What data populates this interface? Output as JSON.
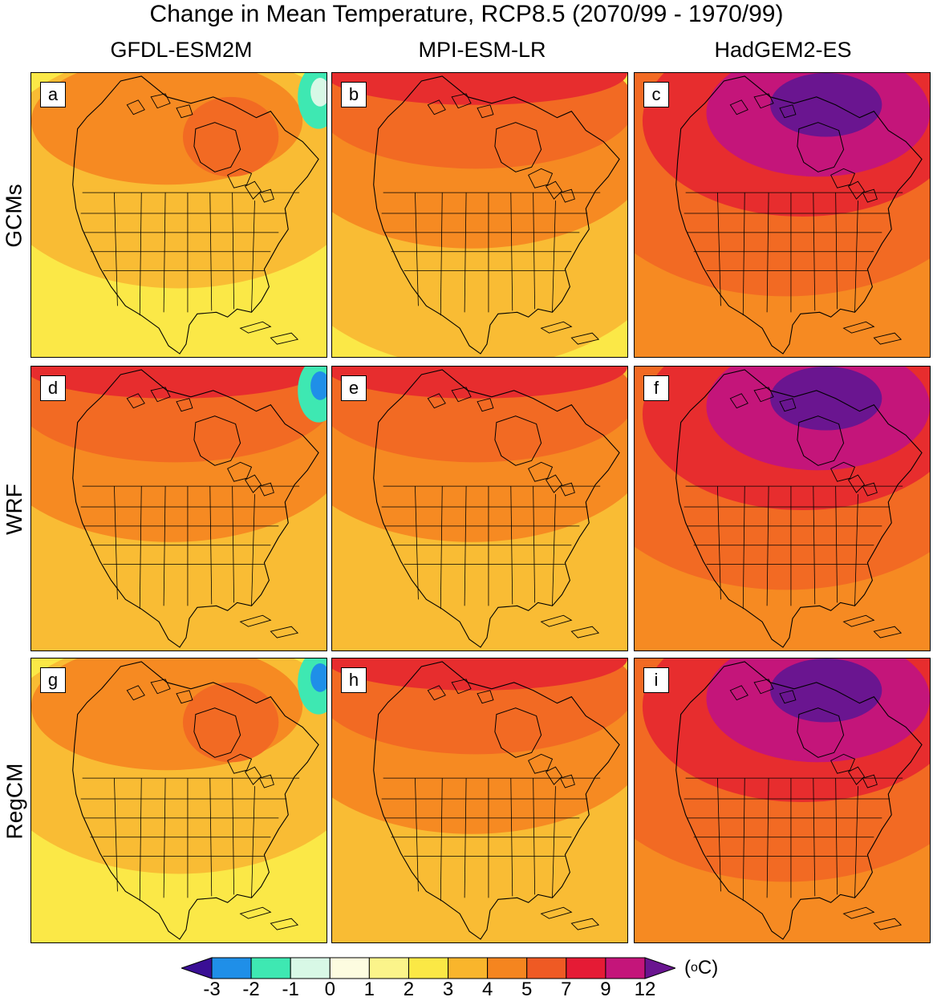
{
  "title": "Change in Mean Temperature, RCP8.5 (2070/99 - 1970/99)",
  "columns": [
    "GFDL-ESM2M",
    "MPI-ESM-LR",
    "HadGEM2-ES"
  ],
  "rows": [
    "GCMs",
    "WRF",
    "RegCM"
  ],
  "panels": [
    {
      "letter": "a",
      "model": "GFDL-ESM2M",
      "source": "GCMs",
      "north": "orange",
      "south": "yellow",
      "hot_core": false,
      "sea": "light-cyan"
    },
    {
      "letter": "b",
      "model": "MPI-ESM-LR",
      "source": "GCMs",
      "north": "red",
      "south": "yellow",
      "hot_core": false,
      "sea": "none"
    },
    {
      "letter": "c",
      "model": "HadGEM2-ES",
      "source": "GCMs",
      "north": "magenta",
      "south": "orange",
      "hot_core": true,
      "sea": "none"
    },
    {
      "letter": "d",
      "model": "GFDL-ESM2M",
      "source": "WRF",
      "north": "red",
      "south": "orange",
      "hot_core": false,
      "sea": "blue"
    },
    {
      "letter": "e",
      "model": "MPI-ESM-LR",
      "source": "WRF",
      "north": "red",
      "south": "orange",
      "hot_core": false,
      "sea": "none"
    },
    {
      "letter": "f",
      "model": "HadGEM2-ES",
      "source": "WRF",
      "north": "magenta",
      "south": "orange",
      "hot_core": true,
      "sea": "none"
    },
    {
      "letter": "g",
      "model": "GFDL-ESM2M",
      "source": "RegCM",
      "north": "orange",
      "south": "yellow",
      "hot_core": false,
      "sea": "blue"
    },
    {
      "letter": "h",
      "model": "MPI-ESM-LR",
      "source": "RegCM",
      "north": "red",
      "south": "orange",
      "hot_core": false,
      "sea": "none"
    },
    {
      "letter": "i",
      "model": "HadGEM2-ES",
      "source": "RegCM",
      "north": "magenta",
      "south": "orange",
      "hot_core": true,
      "sea": "none"
    }
  ],
  "colorbar": {
    "ticks": [
      "-3",
      "-2",
      "-1",
      "0",
      "1",
      "2",
      "3",
      "4",
      "5",
      "7",
      "9",
      "12"
    ],
    "colors": [
      "#3a0f95",
      "#1f8fe8",
      "#3ee8b2",
      "#d8f8e6",
      "#fdfce0",
      "#fbf48a",
      "#fbe845",
      "#f9b52c",
      "#f5851f",
      "#ef5a24",
      "#e51b35",
      "#c4157a",
      "#6a1590"
    ],
    "unit_prefix": "(",
    "unit_sup": "o",
    "unit_suffix": "C)"
  },
  "palette": {
    "yellow": "#fbe847",
    "light_orange": "#f9bc34",
    "orange": "#f68a22",
    "dark_orange": "#f26a23",
    "red": "#e72d2e",
    "magenta": "#c4157a",
    "purple": "#6a1590",
    "cyan": "#3ee8b2",
    "blue": "#1f8fe8",
    "pale": "#d8f8e6"
  }
}
